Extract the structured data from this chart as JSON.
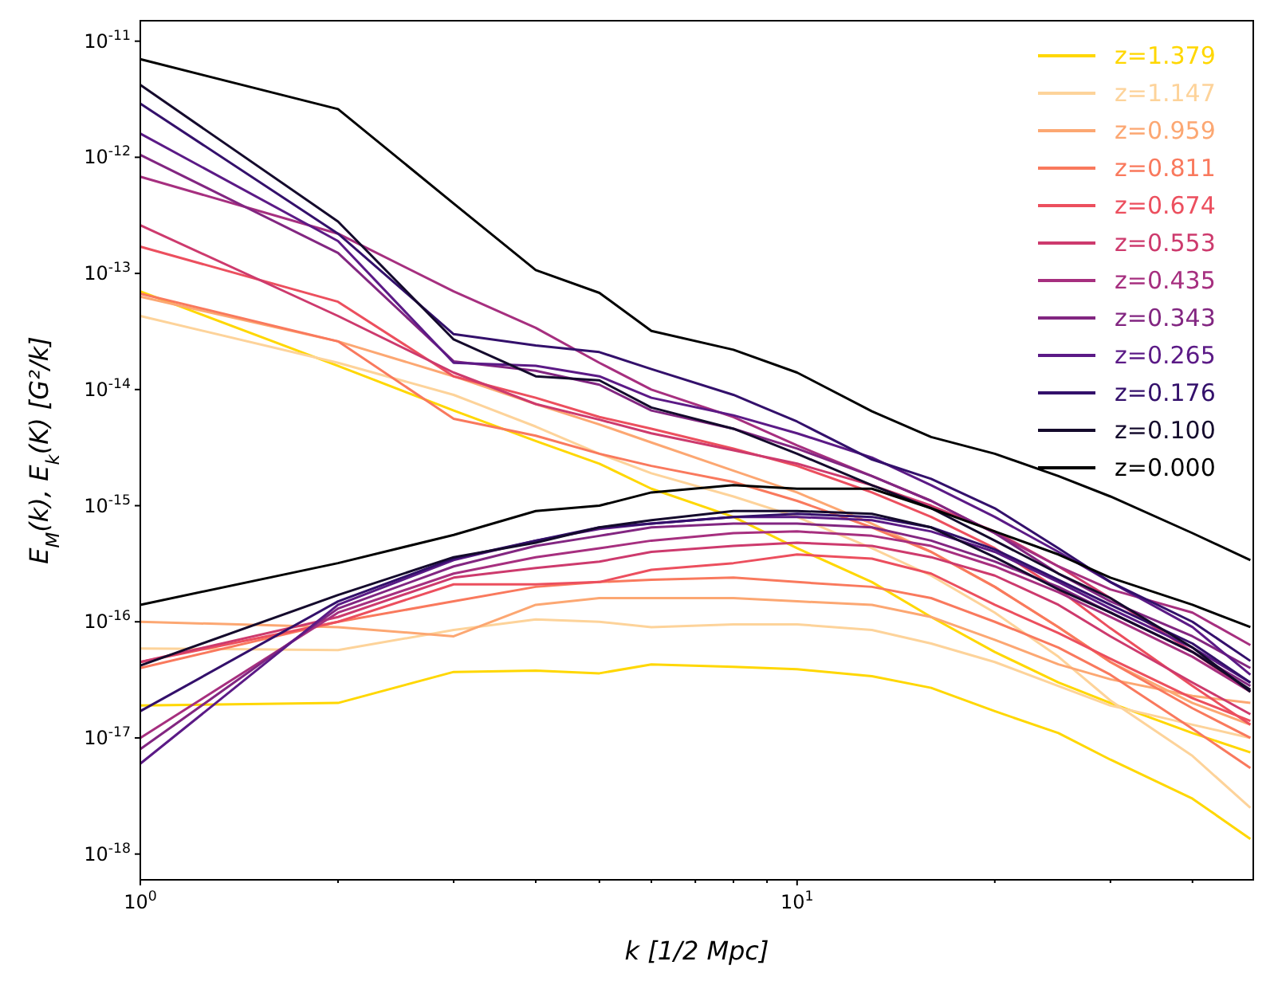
{
  "chart_data": {
    "type": "line",
    "xlabel": "k [1/2 Mpc]",
    "ylabel": "E$_{M}$(k), E$_{k}$(K) [G²/k]",
    "log": "xy",
    "legend": "top right",
    "line_style": "solid",
    "x": [
      1,
      2,
      3,
      4,
      5,
      6,
      8,
      10,
      13,
      16,
      20,
      25,
      30,
      40,
      49
    ],
    "xlim": [
      1,
      49.5
    ],
    "ylim": [
      6e-19,
      1.5e-11
    ],
    "xticks": [
      {
        "value": 1,
        "label": "10$^{0}$"
      },
      {
        "value": 2,
        "label": null
      },
      {
        "value": 3,
        "label": null
      },
      {
        "value": 4,
        "label": null
      },
      {
        "value": 5,
        "label": null
      },
      {
        "value": 6,
        "label": null
      },
      {
        "value": 7,
        "label": null
      },
      {
        "value": 8,
        "label": null
      },
      {
        "value": 9,
        "label": null
      },
      {
        "value": 10,
        "label": "10$^{1}$"
      },
      {
        "value": 20,
        "label": null
      },
      {
        "value": 30,
        "label": null
      },
      {
        "value": 40,
        "label": null
      }
    ],
    "yticks": [
      {
        "value": 1e-18,
        "label": "10$^{-18}$"
      },
      {
        "value": 1e-17,
        "label": "10$^{-17}$"
      },
      {
        "value": 1e-16,
        "label": "10$^{-16}$"
      },
      {
        "value": 1e-15,
        "label": "10$^{-15}$"
      },
      {
        "value": 1e-14,
        "label": "10$^{-14}$"
      },
      {
        "value": 1e-13,
        "label": "10$^{-13}$"
      },
      {
        "value": 1e-12,
        "label": "10$^{-12}$"
      },
      {
        "value": 1e-11,
        "label": "10$^{-11}$"
      }
    ],
    "series": [
      {
        "name": "z=1.379",
        "color": "#ffd700",
        "values": [
          7e-14,
          1.6e-14,
          6.6e-15,
          3.6e-15,
          2.3e-15,
          1.4e-15,
          8e-16,
          4.3e-16,
          2.2e-16,
          1.1e-16,
          5.5e-17,
          3e-17,
          2e-17,
          1.1e-17,
          7.5e-18
        ]
      },
      {
        "color": "#ffd700",
        "values": [
          1.9e-17,
          2e-17,
          3.7e-17,
          3.8e-17,
          3.6e-17,
          4.3e-17,
          4.1e-17,
          3.9e-17,
          3.4e-17,
          2.7e-17,
          1.7e-17,
          1.1e-17,
          6.5e-18,
          3e-18,
          1.35e-18
        ]
      },
      {
        "name": "z=1.147",
        "color": "#fdd39a",
        "values": [
          4.3e-14,
          1.7e-14,
          9e-15,
          4.8e-15,
          2.8e-15,
          1.9e-15,
          1.2e-15,
          8e-16,
          4.3e-16,
          2.5e-16,
          1.2e-16,
          5e-17,
          2.1e-17,
          7e-18,
          2.5e-18
        ]
      },
      {
        "color": "#fdd39a",
        "values": [
          5.9e-17,
          5.7e-17,
          8.5e-17,
          1.05e-16,
          1e-16,
          9e-17,
          9.5e-17,
          9.5e-17,
          8.5e-17,
          6.5e-17,
          4.5e-17,
          2.8e-17,
          1.9e-17,
          1.3e-17,
          1e-17
        ]
      },
      {
        "name": "z=0.959",
        "color": "#fca772",
        "values": [
          6.3e-14,
          2.6e-14,
          1.3e-14,
          7.5e-15,
          5e-15,
          3.5e-15,
          2e-15,
          1.3e-15,
          7e-16,
          4e-16,
          2e-16,
          9e-17,
          4.5e-17,
          2e-17,
          1.3e-17
        ]
      },
      {
        "color": "#fca772",
        "values": [
          1e-16,
          9e-17,
          7.5e-17,
          1.4e-16,
          1.6e-16,
          1.6e-16,
          1.6e-16,
          1.5e-16,
          1.4e-16,
          1.1e-16,
          7e-17,
          4.3e-17,
          3.2e-17,
          2.3e-17,
          2e-17
        ]
      },
      {
        "name": "z=0.811",
        "color": "#f9795d",
        "values": [
          6.7e-14,
          2.6e-14,
          5.6e-15,
          4e-15,
          2.8e-15,
          2.2e-15,
          1.6e-15,
          1.1e-15,
          6.5e-16,
          4e-16,
          2e-16,
          9e-17,
          4.5e-17,
          1.8e-17,
          1e-17
        ]
      },
      {
        "color": "#f9795d",
        "values": [
          4e-17,
          1e-16,
          1.5e-16,
          2e-16,
          2.2e-16,
          2.3e-16,
          2.4e-16,
          2.2e-16,
          2e-16,
          1.6e-16,
          1e-16,
          6e-17,
          3.5e-17,
          1.2e-17,
          5.5e-18
        ]
      },
      {
        "name": "z=0.674",
        "color": "#ec4f5e",
        "values": [
          1.7e-13,
          5.7e-14,
          1.3e-14,
          8.5e-15,
          5.8e-15,
          4.6e-15,
          3.1e-15,
          2.2e-15,
          1.3e-15,
          8e-16,
          4.3e-16,
          1.9e-16,
          8.8e-17,
          2.8e-17,
          1.3e-17
        ]
      },
      {
        "color": "#ec4f5e",
        "values": [
          4.5e-17,
          1e-16,
          2.1e-16,
          2.1e-16,
          2.2e-16,
          2.8e-16,
          3.2e-16,
          3.8e-16,
          3.5e-16,
          2.6e-16,
          1.4e-16,
          8e-17,
          4.8e-17,
          2.2e-17,
          1.4e-17
        ]
      },
      {
        "name": "z=0.553",
        "color": "#cd3a6d",
        "values": [
          2.6e-13,
          4.3e-14,
          1.4e-14,
          7.5e-15,
          5.5e-15,
          4.2e-15,
          3e-15,
          2.3e-15,
          1.5e-15,
          1e-15,
          6e-16,
          3e-16,
          1.6e-16,
          5.5e-17,
          2.5e-17
        ]
      },
      {
        "color": "#cd3a6d",
        "values": [
          4.5e-17,
          1.1e-16,
          2.4e-16,
          2.9e-16,
          3.3e-16,
          4e-16,
          4.5e-16,
          4.8e-16,
          4.5e-16,
          3.6e-16,
          2.5e-16,
          1.4e-16,
          7.5e-17,
          3e-17,
          1.6e-17
        ]
      },
      {
        "name": "z=0.435",
        "color": "#a62f7f",
        "values": [
          6.8e-13,
          2.2e-13,
          7e-14,
          3.4e-14,
          1.7e-14,
          1e-14,
          5.8e-15,
          3.3e-15,
          1.8e-15,
          1.1e-15,
          5.8e-16,
          3e-16,
          1.9e-16,
          1.2e-16,
          6.3e-17
        ]
      },
      {
        "color": "#a62f7f",
        "values": [
          1e-17,
          1.2e-16,
          2.6e-16,
          3.6e-16,
          4.3e-16,
          5e-16,
          5.8e-16,
          6e-16,
          5.5e-16,
          4.5e-16,
          3e-16,
          1.8e-16,
          1.1e-16,
          5e-17,
          2.5e-17
        ]
      },
      {
        "name": "z=0.343",
        "color": "#822681",
        "values": [
          1.05e-12,
          1.5e-13,
          1.75e-14,
          1.45e-14,
          1.1e-14,
          6.6e-15,
          4.6e-15,
          3.1e-15,
          1.8e-15,
          1.1e-15,
          5.8e-16,
          2.6e-16,
          1.5e-16,
          7.5e-17,
          4e-17
        ]
      },
      {
        "color": "#822681",
        "values": [
          8e-18,
          1.3e-16,
          3e-16,
          4.5e-16,
          5.5e-16,
          6.5e-16,
          7e-16,
          7e-16,
          6.5e-16,
          5e-16,
          3.3e-16,
          2e-16,
          1.2e-16,
          5.5e-17,
          2.8e-17
        ]
      },
      {
        "name": "z=0.265",
        "color": "#5b1a86",
        "values": [
          1.6e-12,
          1.9e-13,
          1.7e-14,
          1.6e-14,
          1.3e-14,
          8.5e-15,
          6e-15,
          4.2e-15,
          2.6e-15,
          1.5e-15,
          8e-16,
          4e-16,
          2.2e-16,
          9e-17,
          3.5e-17
        ]
      },
      {
        "color": "#5b1a86",
        "values": [
          6e-18,
          1.4e-16,
          3.4e-16,
          5e-16,
          6.3e-16,
          7e-16,
          8e-16,
          8e-16,
          7.5e-16,
          6e-16,
          4e-16,
          2.2e-16,
          1.3e-16,
          6e-17,
          3e-17
        ]
      },
      {
        "name": "z=0.176",
        "color": "#33106b",
        "values": [
          2.9e-12,
          2.2e-13,
          3e-14,
          2.4e-14,
          2.1e-14,
          1.5e-14,
          9e-15,
          5.3e-15,
          2.5e-15,
          1.7e-15,
          9.5e-16,
          4.3e-16,
          2.2e-16,
          1e-16,
          4.6e-17
        ]
      },
      {
        "color": "#33106b",
        "values": [
          1.7e-17,
          1.5e-16,
          3.5e-16,
          5e-16,
          6.5e-16,
          7e-16,
          8e-16,
          8.5e-16,
          8e-16,
          6.5e-16,
          4.2e-16,
          2.3e-16,
          1.4e-16,
          6.5e-17,
          3e-17
        ]
      },
      {
        "name": "z=0.100",
        "color": "#140a2c",
        "values": [
          4.2e-12,
          2.8e-13,
          2.7e-14,
          1.3e-14,
          1.2e-14,
          7e-15,
          4.6e-15,
          2.8e-15,
          1.5e-15,
          9.5e-16,
          5e-16,
          2.6e-16,
          1.6e-16,
          6e-17,
          2.5e-17
        ]
      },
      {
        "color": "#140a2c",
        "values": [
          4.2e-17,
          1.7e-16,
          3.6e-16,
          4.8e-16,
          6.5e-16,
          7.5e-16,
          9e-16,
          9e-16,
          8.5e-16,
          6.5e-16,
          3.6e-16,
          1.9e-16,
          1.2e-16,
          5.5e-17,
          2.6e-17
        ]
      },
      {
        "name": "z=0.000",
        "color": "#000000",
        "values": [
          7e-12,
          2.6e-12,
          4e-13,
          1.07e-13,
          6.8e-14,
          3.2e-14,
          2.2e-14,
          1.4e-14,
          6.5e-15,
          3.9e-15,
          2.8e-15,
          1.8e-15,
          1.2e-15,
          5.8e-16,
          3.4e-16
        ]
      },
      {
        "color": "#000000",
        "values": [
          1.4e-16,
          3.2e-16,
          5.6e-16,
          9e-16,
          1e-15,
          1.3e-15,
          1.5e-15,
          1.4e-15,
          1.4e-15,
          9.5e-16,
          6e-16,
          3.8e-16,
          2.4e-16,
          1.4e-16,
          9e-17
        ]
      }
    ]
  }
}
